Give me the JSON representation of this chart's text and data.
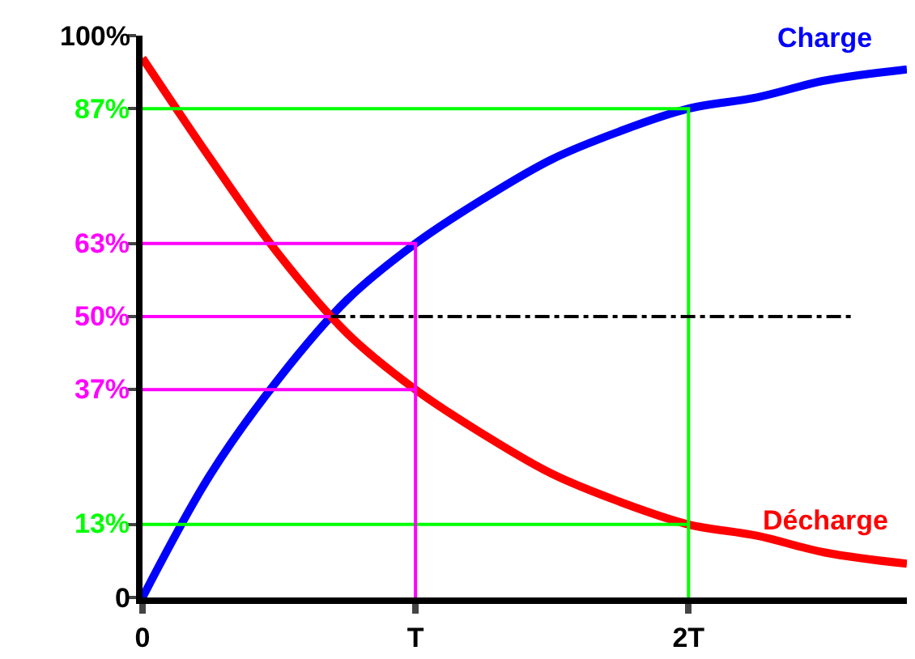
{
  "chart_data": {
    "type": "line",
    "legend": false,
    "grid": false,
    "marker": "none",
    "xlim": [
      0,
      2.8
    ],
    "xticks": [
      0,
      {
        "value": 1,
        "label": "T"
      },
      {
        "value": 2,
        "label": "2T"
      }
    ],
    "ylim": [
      0,
      100
    ],
    "yticks": [
      0,
      {
        "value": 13,
        "label": "13%"
      },
      {
        "value": 37,
        "label": "37%"
      },
      {
        "value": 50,
        "label": "50%"
      },
      {
        "value": 63,
        "label": "63%"
      },
      {
        "value": 87,
        "label": "87%"
      },
      {
        "value": 100,
        "label": "100%"
      }
    ],
    "series": [
      {
        "name": "Charge",
        "color": "#0000ff",
        "x": [
          0,
          0.25,
          0.5,
          0.75,
          1,
          1.25,
          1.5,
          1.75,
          2,
          2.25,
          2.5,
          2.8
        ],
        "values": [
          0,
          22,
          39,
          53,
          63,
          71,
          78,
          83,
          87,
          89,
          92,
          94
        ]
      },
      {
        "name": "Décharge",
        "color": "#ff0000",
        "x": [
          0,
          0.25,
          0.5,
          0.75,
          1,
          1.25,
          1.5,
          1.75,
          2,
          2.25,
          2.5,
          2.8
        ],
        "values": [
          96,
          78,
          61,
          47,
          37,
          29,
          22,
          17,
          13,
          11,
          8,
          6
        ]
      },
      {
        "color": "#00ff00",
        "x": [
          0,
          2,
          2
        ],
        "values": [
          87,
          87,
          0
        ]
      },
      {
        "color": "#00ff00",
        "x": [
          0,
          2
        ],
        "values": [
          13,
          13
        ]
      },
      {
        "color": "#ff00ff",
        "x": [
          0,
          1,
          1
        ],
        "values": [
          63,
          63,
          0
        ]
      },
      {
        "color": "#ff00ff",
        "x": [
          0,
          1
        ],
        "values": [
          37,
          37
        ]
      },
      {
        "color": "#ff00ff",
        "x": [
          0,
          0.69
        ],
        "values": [
          50,
          50
        ]
      },
      {
        "color": "#000000",
        "x": [
          0.69,
          2.6
        ],
        "values": [
          50,
          50
        ],
        "line_style": "dashed"
      }
    ]
  }
}
